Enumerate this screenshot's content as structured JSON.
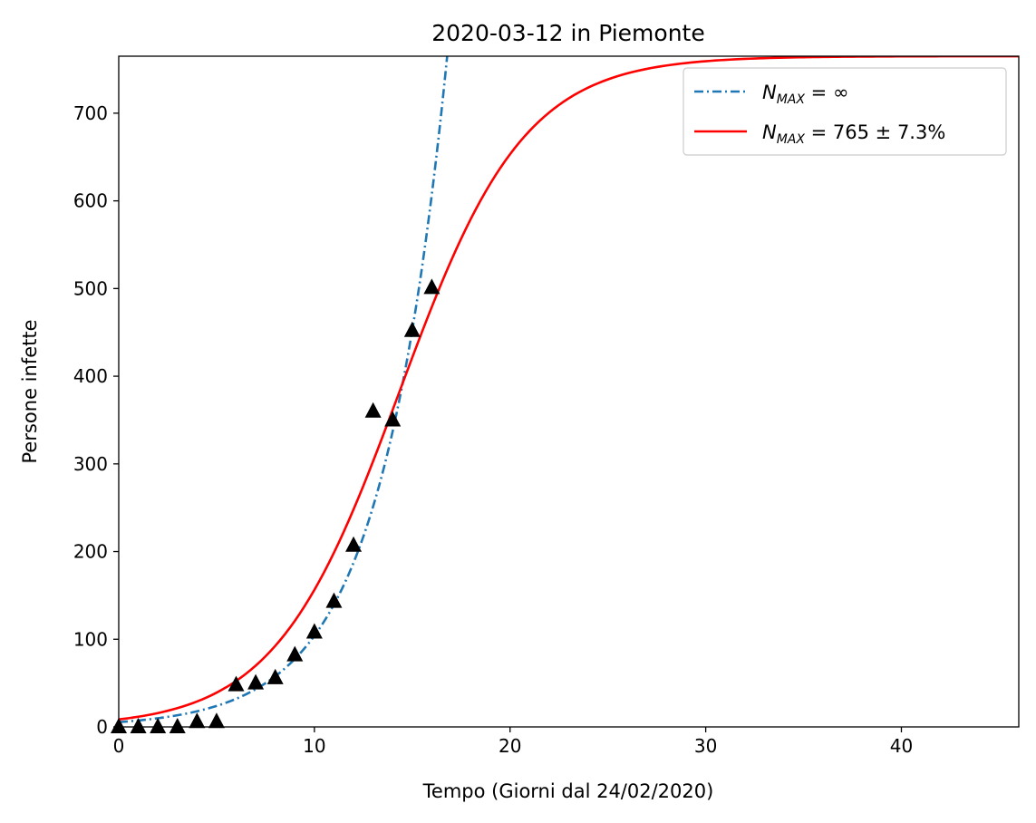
{
  "chart_data": {
    "type": "line",
    "title": "2020-03-12 in Piemonte",
    "xlabel": "Tempo (Giorni dal 24/02/2020)",
    "ylabel": "Persone infette",
    "xlim": [
      0,
      46
    ],
    "ylim": [
      0,
      765
    ],
    "xticks": [
      0,
      10,
      20,
      30,
      40
    ],
    "yticks": [
      0,
      100,
      200,
      300,
      400,
      500,
      600,
      700
    ],
    "grid": false,
    "legend_position": "top-right",
    "series": [
      {
        "name": "N_MAX = ∞",
        "legend_label": {
          "symbol": "N",
          "sub": "MAX",
          "rest": " = ∞"
        },
        "style": "dashdot",
        "color": "#1f77b4",
        "model": "exponential",
        "x": [
          0,
          2,
          4,
          6,
          8,
          10,
          11,
          12,
          13,
          14,
          15,
          16,
          16.8
        ],
        "values": [
          6,
          9,
          15,
          25,
          46,
          100,
          150,
          205,
          280,
          360,
          470,
          620,
          765
        ]
      },
      {
        "name": "N_MAX = 765 ± 7.3%",
        "legend_label": {
          "symbol": "N",
          "sub": "MAX",
          "rest": " = 765 ± 7.3%"
        },
        "style": "solid",
        "color": "#ff0000",
        "model": "logistic",
        "x": [
          0,
          2,
          4,
          6,
          8,
          10,
          12,
          13,
          14,
          15,
          16,
          17,
          18,
          20,
          22,
          24,
          26,
          28,
          30,
          35,
          40,
          46
        ],
        "values": [
          1,
          4,
          10,
          25,
          56,
          112,
          210,
          280,
          350,
          425,
          498,
          570,
          625,
          700,
          738,
          755,
          761,
          763,
          764,
          765,
          765,
          765
        ]
      },
      {
        "name": "observed",
        "style": "markers",
        "marker": "triangle",
        "color": "#000000",
        "x": [
          0,
          1,
          2,
          3,
          4,
          5,
          6,
          7,
          8,
          9,
          10,
          11,
          12,
          13,
          14,
          15,
          16
        ],
        "values": [
          0,
          0,
          0,
          0,
          6,
          6,
          48,
          50,
          56,
          82,
          108,
          143,
          207,
          360,
          350,
          452,
          501
        ]
      }
    ]
  }
}
